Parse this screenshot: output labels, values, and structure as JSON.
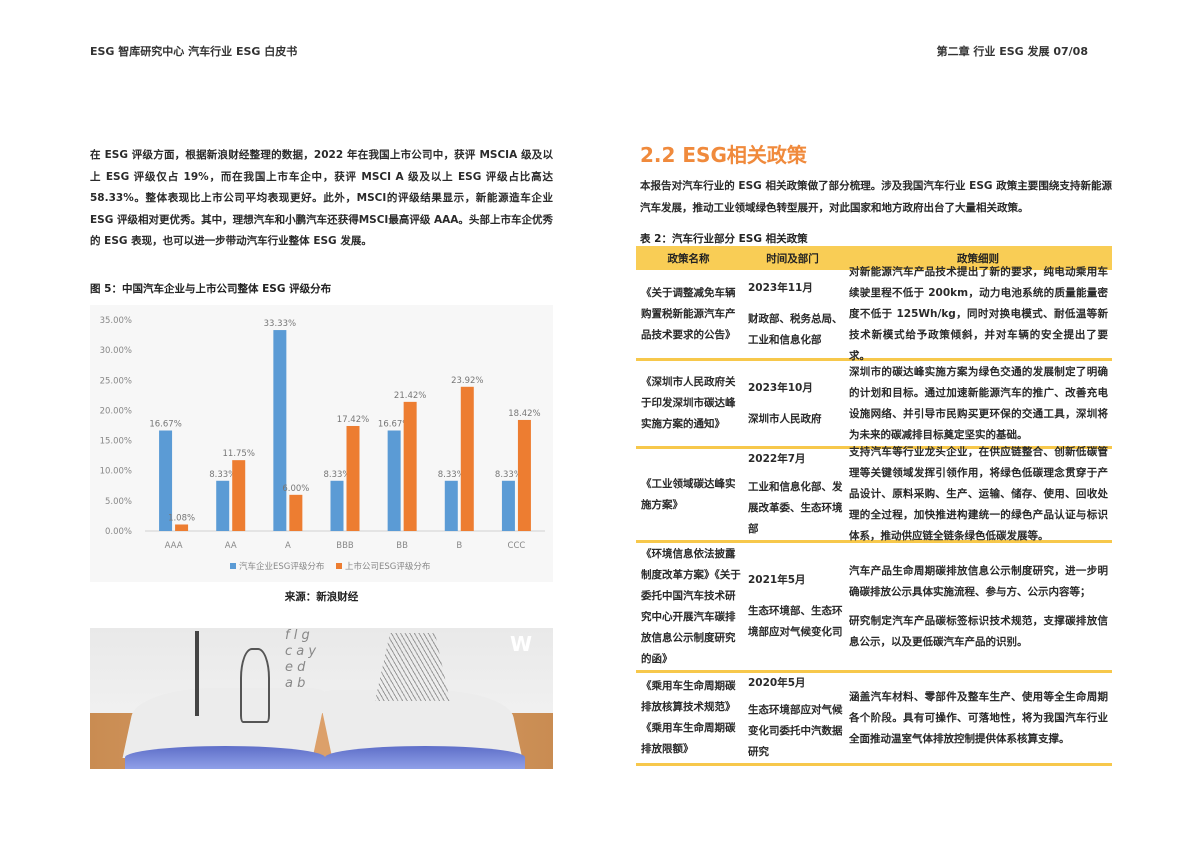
{
  "header": {
    "left": "ESG 智库研究中心   汽车行业 ESG 白皮书",
    "right": "第二章   行业 ESG 发展   07/08"
  },
  "left": {
    "paragraph": "在 ESG 评级方面，根据新浪财经整理的数据，2022 年在我国上市公司中，获评 MSCIA 级及以上 ESG 评级仅占 19%，而在我国上市车企中，获评 MSCI A 级及以上 ESG 评级占比高达 58.33%。整体表现比上市公司平均表现更好。此外，MSCI的评级结果显示，新能源造车企业 ESG 评级相对更优秀。其中，理想汽车和小鹏汽车还获得MSCI最高评级 AAA。头部上市车企优秀的 ESG 表现，也可以进一步带动汽车行业整体 ESG 发展。",
    "figure_caption": "图 5：中国汽车企业与上市公司整体 ESG 评级分布",
    "source": "来源：新浪财经"
  },
  "chart_data": {
    "type": "bar",
    "title": "",
    "xlabel": "",
    "ylabel": "",
    "categories": [
      "AAA",
      "AA",
      "A",
      "BBB",
      "BB",
      "B",
      "CCC"
    ],
    "series": [
      {
        "name": "汽车企业ESG评级分布",
        "color": "#5b9bd5",
        "values": [
          16.67,
          8.33,
          33.33,
          8.33,
          16.67,
          8.33,
          8.33
        ]
      },
      {
        "name": "上市公司ESG评级分布",
        "color": "#ed7d31",
        "values": [
          1.08,
          11.75,
          6.0,
          17.42,
          21.42,
          23.92,
          18.42
        ]
      }
    ],
    "ylim": [
      0,
      35
    ],
    "yticks": [
      "0.00%",
      "5.00%",
      "10.00%",
      "15.00%",
      "20.00%",
      "25.00%",
      "30.00%",
      "35.00%"
    ],
    "data_labels": true,
    "grid": false,
    "legend": "bottom"
  },
  "right": {
    "heading": "2.2 ESG相关政策",
    "heading_color": "#f08a3c",
    "paragraph": "本报告对汽车行业的 ESG 相关政策做了部分梳理。涉及我国汽车行业 ESG 政策主要围绕支持新能源汽车发展，推动工业领域绿色转型展开，对此国家和地方政府出台了大量相关政策。",
    "table_caption": "表 2：汽车行业部分 ESG 相关政策",
    "table": {
      "headers": [
        "政策名称",
        "时间及部门",
        "政策细则"
      ],
      "rows": [
        {
          "name": "《关于调整减免车辆购置税新能源汽车产品技术要求的公告》",
          "date": "2023年11月",
          "dept": "财政部、税务总局、工业和信息化部",
          "detail": [
            "对新能源汽车产品技术提出了新的要求，纯电动乘用车续驶里程不低于 200km，动力电池系统的质量能量密度不低于 125Wh/kg，同时对换电模式、耐低温等新技术新模式给予政策倾斜，并对车辆的安全提出了要求。"
          ]
        },
        {
          "name": "《深圳市人民政府关于印发深圳市碳达峰实施方案的通知》",
          "date": "2023年10月",
          "dept": "深圳市人民政府",
          "detail": [
            "深圳市的碳达峰实施方案为绿色交通的发展制定了明确的计划和目标。通过加速新能源汽车的推广、改善充电设施网络、并引导市民购买更环保的交通工具，深圳将为未来的碳减排目标奠定坚实的基础。"
          ]
        },
        {
          "name": "《工业领域碳达峰实施方案》",
          "date": "2022年7月",
          "dept": "工业和信息化部、发展改革委、生态环境部",
          "detail": [
            "支持汽车等行业龙头企业，在供应链整合、创新低碳管理等关键领域发挥引领作用，将绿色低碳理念贯穿于产品设计、原料采购、生产、运输、储存、使用、回收处理的全过程，加快推进构建统一的绿色产品认证与标识体系，推动供应链全链条绿色低碳发展等。"
          ]
        },
        {
          "name": "《环境信息依法披露制度改革方案》《关于委托中国汽车技术研究中心开展汽车碳排放信息公示制度研究的函》",
          "date": "2021年5月",
          "dept": "生态环境部、生态环境部应对气候变化司",
          "detail": [
            "汽车产品生命周期碳排放信息公示制度研究，进一步明确碳排放公示具体实施流程、参与方、公示内容等；",
            "研究制定汽车产品碳标签标识技术规范，支撑碳排放信息公示，以及更低碳汽车产品的识别。"
          ]
        },
        {
          "name": "《乘用车生命周期碳排放核算技术规范》《乘用车生命周期碳排放限额》",
          "date": "2020年5月",
          "dept": "生态环境部应对气候变化司委托中汽数据研究",
          "detail": [
            "涵盖汽车材料、零部件及整车生产、使用等全生命周期各个阶段。具有可操作、可落地性，将为我国汽车行业全面推动温室气体排放控制提供体系核算支撑。"
          ]
        }
      ]
    }
  },
  "photo": {
    "description_icon": "open-book-illustration-image",
    "letters": [
      "f",
      "l",
      "g",
      "a",
      "c",
      "y",
      "e",
      "a",
      "d",
      "b",
      "W"
    ]
  }
}
